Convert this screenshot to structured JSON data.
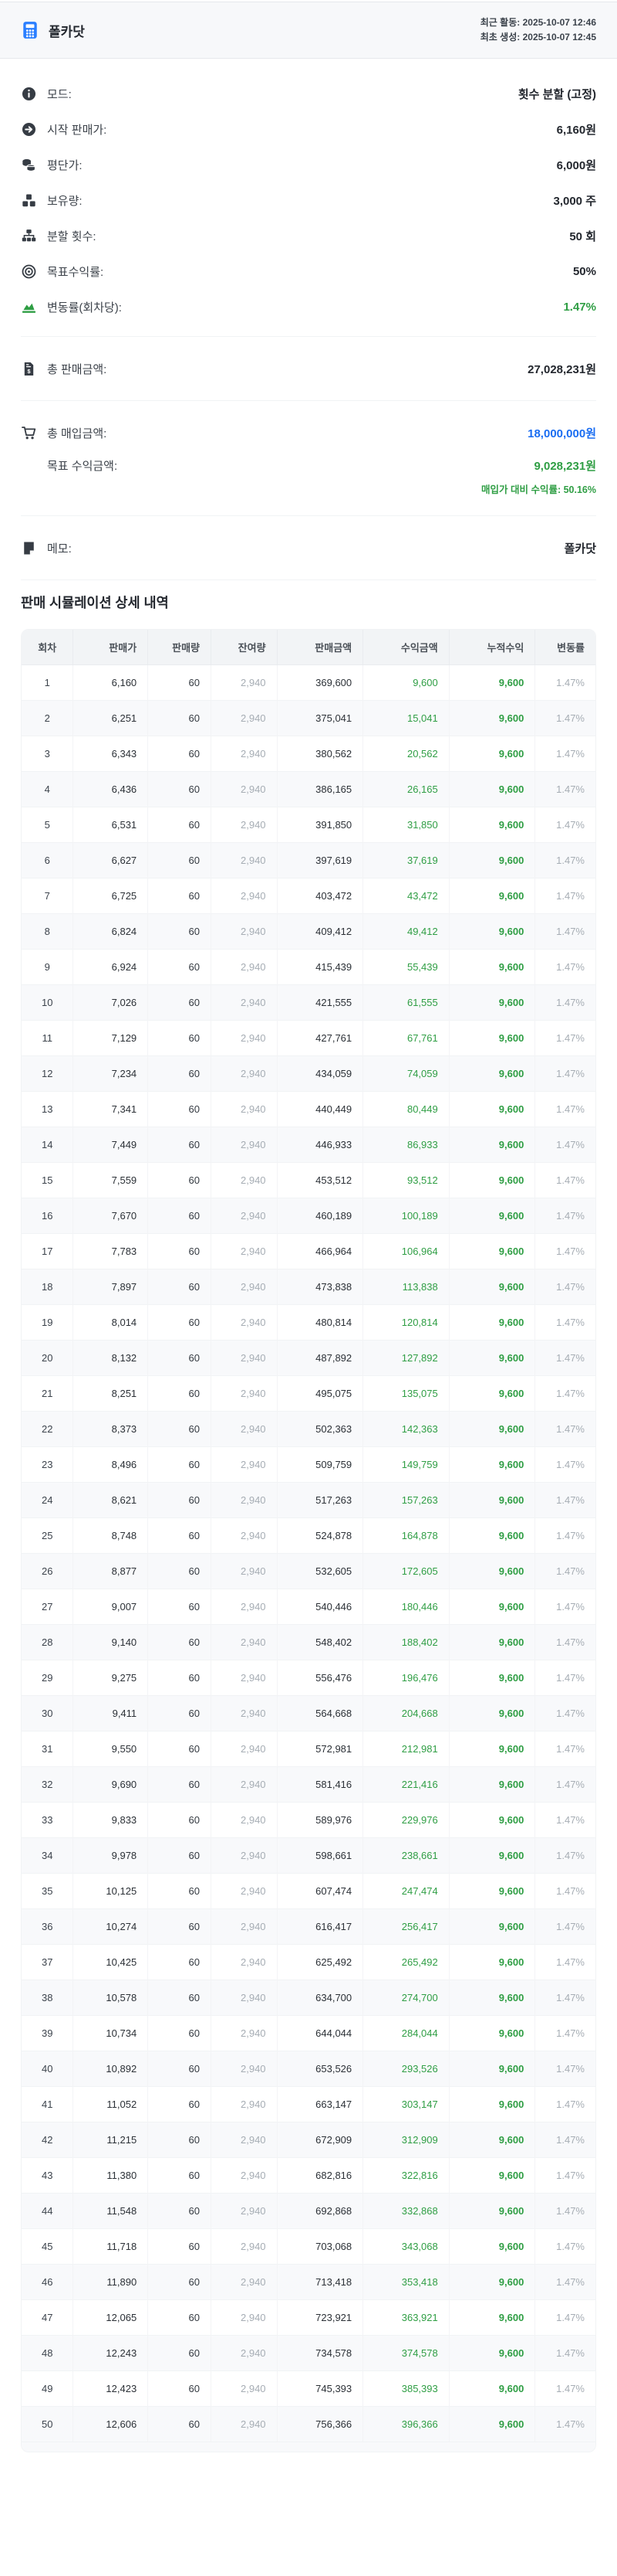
{
  "header": {
    "title": "폴카닷",
    "recent_activity": "최근 활동: 2025-10-07 12:46",
    "created": "최초 생성: 2025-10-07 12:45"
  },
  "info": {
    "mode": {
      "label": "모드:",
      "value": "횟수 분할 (고정)",
      "icon": "info-icon"
    },
    "start_price": {
      "label": "시작 판매가:",
      "value": "6,160원",
      "icon": "arrow-right-circle-icon"
    },
    "avg_price": {
      "label": "평단가:",
      "value": "6,000원",
      "icon": "coins-icon"
    },
    "holdings": {
      "label": "보유량:",
      "value": "3,000 주",
      "icon": "boxes-icon"
    },
    "split_count": {
      "label": "분할 횟수:",
      "value": "50 회",
      "icon": "sitemap-icon"
    },
    "target_yield": {
      "label": "목표수익률:",
      "value": "50%",
      "icon": "target-icon"
    },
    "volatility": {
      "label": "변동률(회차당):",
      "value": "1.47%",
      "icon": "area-chart-icon"
    }
  },
  "totals": {
    "total_sales": {
      "label": "총 판매금액:",
      "value": "27,028,231원",
      "icon": "receipt-dollar-icon"
    },
    "total_purchase": {
      "label": "총 매입금액:",
      "value": "18,000,000원",
      "icon": "cart-icon"
    },
    "target_profit": {
      "label": "목표 수익금액:",
      "value": "9,028,231원",
      "sub": "매입가 대비 수익률: 50.16%"
    },
    "memo": {
      "label": "메모:",
      "value": "폴카닷",
      "icon": "note-icon"
    }
  },
  "colors": {
    "accent_blue": "#2b7fff",
    "value_blue": "#1a6df2",
    "green": "#2f9e44",
    "muted_gray": "#a6adb4"
  },
  "table": {
    "title": "판매 시뮬레이션 상세 내역",
    "columns": [
      "회차",
      "판매가",
      "판매량",
      "잔여량",
      "판매금액",
      "수익금액",
      "누적수익",
      "변동률"
    ],
    "rows": [
      [
        "1",
        "6,160",
        "60",
        "2,940",
        "369,600",
        "9,600",
        "9,600",
        "1.47%"
      ],
      [
        "2",
        "6,251",
        "60",
        "2,940",
        "375,041",
        "15,041",
        "9,600",
        "1.47%"
      ],
      [
        "3",
        "6,343",
        "60",
        "2,940",
        "380,562",
        "20,562",
        "9,600",
        "1.47%"
      ],
      [
        "4",
        "6,436",
        "60",
        "2,940",
        "386,165",
        "26,165",
        "9,600",
        "1.47%"
      ],
      [
        "5",
        "6,531",
        "60",
        "2,940",
        "391,850",
        "31,850",
        "9,600",
        "1.47%"
      ],
      [
        "6",
        "6,627",
        "60",
        "2,940",
        "397,619",
        "37,619",
        "9,600",
        "1.47%"
      ],
      [
        "7",
        "6,725",
        "60",
        "2,940",
        "403,472",
        "43,472",
        "9,600",
        "1.47%"
      ],
      [
        "8",
        "6,824",
        "60",
        "2,940",
        "409,412",
        "49,412",
        "9,600",
        "1.47%"
      ],
      [
        "9",
        "6,924",
        "60",
        "2,940",
        "415,439",
        "55,439",
        "9,600",
        "1.47%"
      ],
      [
        "10",
        "7,026",
        "60",
        "2,940",
        "421,555",
        "61,555",
        "9,600",
        "1.47%"
      ],
      [
        "11",
        "7,129",
        "60",
        "2,940",
        "427,761",
        "67,761",
        "9,600",
        "1.47%"
      ],
      [
        "12",
        "7,234",
        "60",
        "2,940",
        "434,059",
        "74,059",
        "9,600",
        "1.47%"
      ],
      [
        "13",
        "7,341",
        "60",
        "2,940",
        "440,449",
        "80,449",
        "9,600",
        "1.47%"
      ],
      [
        "14",
        "7,449",
        "60",
        "2,940",
        "446,933",
        "86,933",
        "9,600",
        "1.47%"
      ],
      [
        "15",
        "7,559",
        "60",
        "2,940",
        "453,512",
        "93,512",
        "9,600",
        "1.47%"
      ],
      [
        "16",
        "7,670",
        "60",
        "2,940",
        "460,189",
        "100,189",
        "9,600",
        "1.47%"
      ],
      [
        "17",
        "7,783",
        "60",
        "2,940",
        "466,964",
        "106,964",
        "9,600",
        "1.47%"
      ],
      [
        "18",
        "7,897",
        "60",
        "2,940",
        "473,838",
        "113,838",
        "9,600",
        "1.47%"
      ],
      [
        "19",
        "8,014",
        "60",
        "2,940",
        "480,814",
        "120,814",
        "9,600",
        "1.47%"
      ],
      [
        "20",
        "8,132",
        "60",
        "2,940",
        "487,892",
        "127,892",
        "9,600",
        "1.47%"
      ],
      [
        "21",
        "8,251",
        "60",
        "2,940",
        "495,075",
        "135,075",
        "9,600",
        "1.47%"
      ],
      [
        "22",
        "8,373",
        "60",
        "2,940",
        "502,363",
        "142,363",
        "9,600",
        "1.47%"
      ],
      [
        "23",
        "8,496",
        "60",
        "2,940",
        "509,759",
        "149,759",
        "9,600",
        "1.47%"
      ],
      [
        "24",
        "8,621",
        "60",
        "2,940",
        "517,263",
        "157,263",
        "9,600",
        "1.47%"
      ],
      [
        "25",
        "8,748",
        "60",
        "2,940",
        "524,878",
        "164,878",
        "9,600",
        "1.47%"
      ],
      [
        "26",
        "8,877",
        "60",
        "2,940",
        "532,605",
        "172,605",
        "9,600",
        "1.47%"
      ],
      [
        "27",
        "9,007",
        "60",
        "2,940",
        "540,446",
        "180,446",
        "9,600",
        "1.47%"
      ],
      [
        "28",
        "9,140",
        "60",
        "2,940",
        "548,402",
        "188,402",
        "9,600",
        "1.47%"
      ],
      [
        "29",
        "9,275",
        "60",
        "2,940",
        "556,476",
        "196,476",
        "9,600",
        "1.47%"
      ],
      [
        "30",
        "9,411",
        "60",
        "2,940",
        "564,668",
        "204,668",
        "9,600",
        "1.47%"
      ],
      [
        "31",
        "9,550",
        "60",
        "2,940",
        "572,981",
        "212,981",
        "9,600",
        "1.47%"
      ],
      [
        "32",
        "9,690",
        "60",
        "2,940",
        "581,416",
        "221,416",
        "9,600",
        "1.47%"
      ],
      [
        "33",
        "9,833",
        "60",
        "2,940",
        "589,976",
        "229,976",
        "9,600",
        "1.47%"
      ],
      [
        "34",
        "9,978",
        "60",
        "2,940",
        "598,661",
        "238,661",
        "9,600",
        "1.47%"
      ],
      [
        "35",
        "10,125",
        "60",
        "2,940",
        "607,474",
        "247,474",
        "9,600",
        "1.47%"
      ],
      [
        "36",
        "10,274",
        "60",
        "2,940",
        "616,417",
        "256,417",
        "9,600",
        "1.47%"
      ],
      [
        "37",
        "10,425",
        "60",
        "2,940",
        "625,492",
        "265,492",
        "9,600",
        "1.47%"
      ],
      [
        "38",
        "10,578",
        "60",
        "2,940",
        "634,700",
        "274,700",
        "9,600",
        "1.47%"
      ],
      [
        "39",
        "10,734",
        "60",
        "2,940",
        "644,044",
        "284,044",
        "9,600",
        "1.47%"
      ],
      [
        "40",
        "10,892",
        "60",
        "2,940",
        "653,526",
        "293,526",
        "9,600",
        "1.47%"
      ],
      [
        "41",
        "11,052",
        "60",
        "2,940",
        "663,147",
        "303,147",
        "9,600",
        "1.47%"
      ],
      [
        "42",
        "11,215",
        "60",
        "2,940",
        "672,909",
        "312,909",
        "9,600",
        "1.47%"
      ],
      [
        "43",
        "11,380",
        "60",
        "2,940",
        "682,816",
        "322,816",
        "9,600",
        "1.47%"
      ],
      [
        "44",
        "11,548",
        "60",
        "2,940",
        "692,868",
        "332,868",
        "9,600",
        "1.47%"
      ],
      [
        "45",
        "11,718",
        "60",
        "2,940",
        "703,068",
        "343,068",
        "9,600",
        "1.47%"
      ],
      [
        "46",
        "11,890",
        "60",
        "2,940",
        "713,418",
        "353,418",
        "9,600",
        "1.47%"
      ],
      [
        "47",
        "12,065",
        "60",
        "2,940",
        "723,921",
        "363,921",
        "9,600",
        "1.47%"
      ],
      [
        "48",
        "12,243",
        "60",
        "2,940",
        "734,578",
        "374,578",
        "9,600",
        "1.47%"
      ],
      [
        "49",
        "12,423",
        "60",
        "2,940",
        "745,393",
        "385,393",
        "9,600",
        "1.47%"
      ],
      [
        "50",
        "12,606",
        "60",
        "2,940",
        "756,366",
        "396,366",
        "9,600",
        "1.47%"
      ]
    ]
  }
}
